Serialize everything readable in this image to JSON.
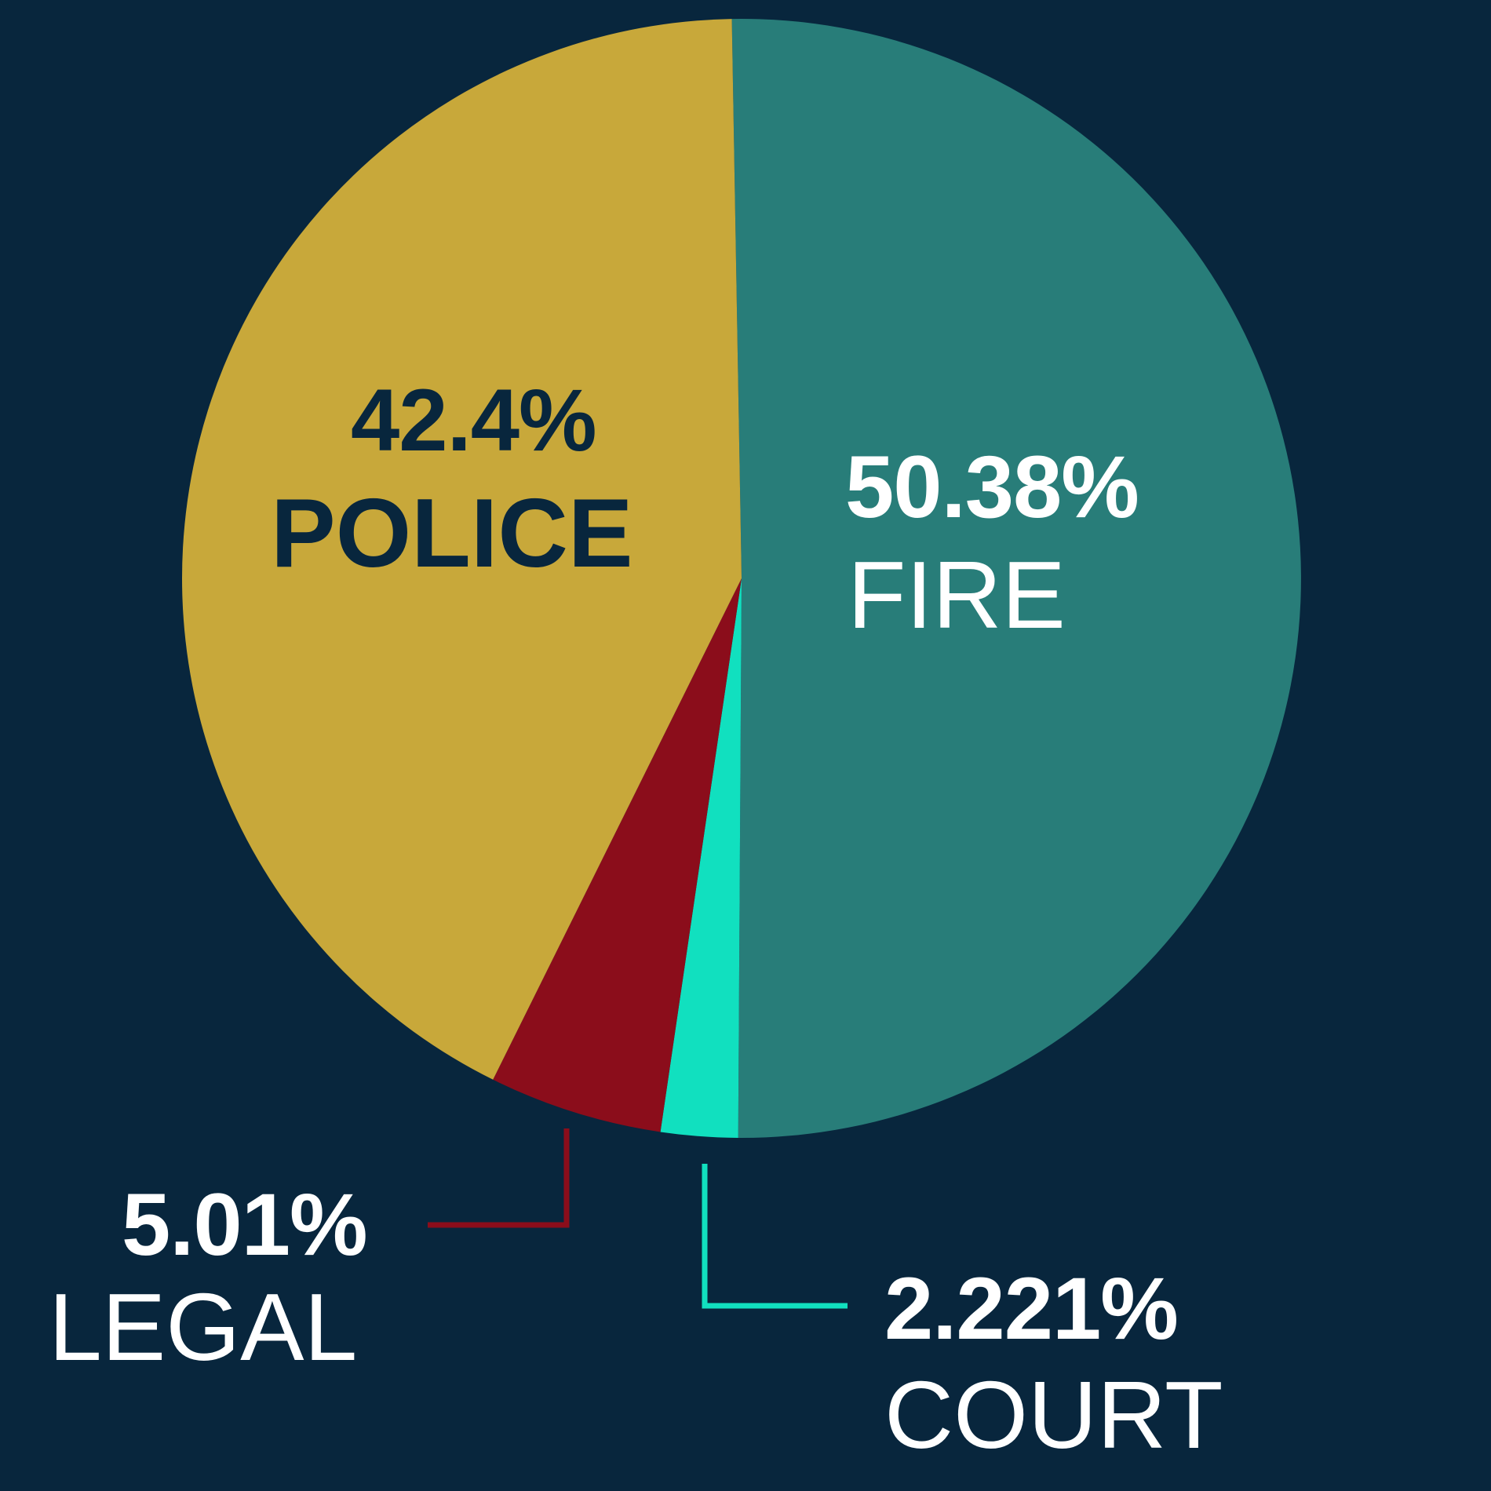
{
  "chart_data": {
    "type": "pie",
    "start_angle_deg": -1,
    "direction": "clockwise",
    "slices": [
      {
        "key": "fire",
        "label": "FIRE",
        "value": 50.38,
        "value_label": "50.38%",
        "color": "#287d79"
      },
      {
        "key": "court",
        "label": "COURT",
        "value": 2.221,
        "value_label": "2.221%",
        "color": "#11e0bf"
      },
      {
        "key": "legal",
        "label": "LEGAL",
        "value": 5.01,
        "value_label": "5.01%",
        "color": "#8b0d1b"
      },
      {
        "key": "police",
        "label": "POLICE",
        "value": 42.4,
        "value_label": "42.4%",
        "color": "#c8a83a"
      }
    ],
    "background": "#08263d",
    "legend": "none"
  }
}
